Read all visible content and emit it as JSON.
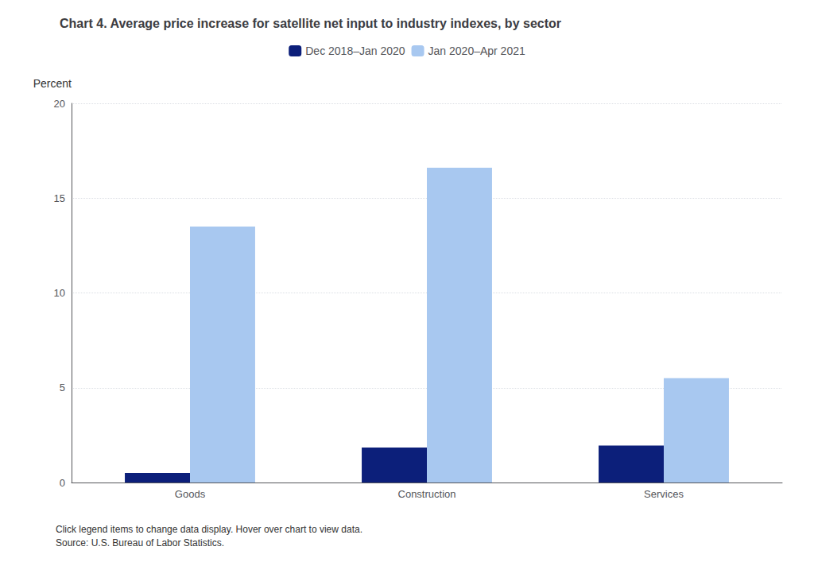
{
  "chart_data": {
    "type": "bar",
    "title": "Chart 4. Average price increase for satellite net input to industry indexes, by sector",
    "y_label": "Percent",
    "categories": [
      "Goods",
      "Construction",
      "Services"
    ],
    "series": [
      {
        "name": "Dec 2018–Jan 2020",
        "color": "#0c1f7a",
        "values": [
          0.5,
          1.85,
          1.95
        ]
      },
      {
        "name": "Jan 2020–Apr 2021",
        "color": "#a8c8f0",
        "values": [
          13.5,
          16.6,
          5.5
        ]
      }
    ],
    "ylim": [
      0,
      20
    ],
    "yticks": [
      0,
      5,
      10,
      15,
      20
    ],
    "grid": true,
    "legend": "top",
    "annotations": [
      "Click legend items to change data display. Hover over chart to view data.\nSource: U.S. Bureau of Labor Statistics."
    ]
  }
}
